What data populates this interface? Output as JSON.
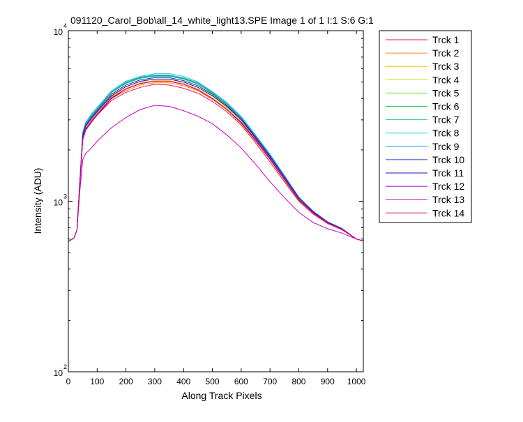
{
  "chart_data": {
    "type": "line",
    "title": "091120_Carol_Bob\\all_14_white_light13.SPE  Image 1 of 1  I:1  S:6  G:1",
    "xlabel": "Along Track Pixels",
    "ylabel": "Intensity (ADU)",
    "xlim": [
      0,
      1024
    ],
    "ylim": [
      100,
      10000
    ],
    "yscale": "log",
    "grid": false,
    "legend_position": "outside-right-top",
    "x_ticks": [
      {
        "value": 0,
        "label": "0"
      },
      {
        "value": 100,
        "label": "100"
      },
      {
        "value": 200,
        "label": "200"
      },
      {
        "value": 300,
        "label": "300"
      },
      {
        "value": 400,
        "label": "400"
      },
      {
        "value": 500,
        "label": "500"
      },
      {
        "value": 600,
        "label": "600"
      },
      {
        "value": 700,
        "label": "700"
      },
      {
        "value": 800,
        "label": "800"
      },
      {
        "value": 900,
        "label": "900"
      },
      {
        "value": 1000,
        "label": "1000"
      }
    ],
    "y_ticks": [
      {
        "value": 100,
        "base": "10",
        "exp": "2"
      },
      {
        "value": 1000,
        "base": "10",
        "exp": "3"
      },
      {
        "value": 10000,
        "base": "10",
        "exp": "4"
      }
    ],
    "x": [
      0,
      20,
      30,
      40,
      50,
      60,
      80,
      100,
      150,
      200,
      250,
      300,
      350,
      400,
      450,
      500,
      550,
      600,
      650,
      700,
      750,
      800,
      850,
      900,
      950,
      1000,
      1024
    ],
    "series": [
      {
        "name": "Trck 1",
        "color": "#e6194b",
        "values": [
          580,
          610,
          680,
          1300,
          2300,
          2600,
          2900,
          3200,
          3900,
          4350,
          4650,
          4850,
          4800,
          4600,
          4300,
          3850,
          3350,
          2800,
          2200,
          1700,
          1300,
          1000,
          840,
          740,
          680,
          600,
          585
        ]
      },
      {
        "name": "Trck 2",
        "color": "#f58231",
        "values": [
          580,
          610,
          680,
          1300,
          2350,
          2650,
          2950,
          3250,
          4000,
          4450,
          4800,
          4950,
          4950,
          4750,
          4450,
          3950,
          3450,
          2850,
          2250,
          1750,
          1330,
          1010,
          850,
          745,
          682,
          600,
          585
        ]
      },
      {
        "name": "Trck 3",
        "color": "#f5c400",
        "values": [
          580,
          610,
          680,
          1300,
          2400,
          2700,
          3000,
          3300,
          4100,
          4600,
          4950,
          5100,
          5100,
          4900,
          4550,
          4050,
          3500,
          2900,
          2300,
          1780,
          1350,
          1020,
          855,
          748,
          684,
          600,
          585
        ]
      },
      {
        "name": "Trck 4",
        "color": "#c8e000",
        "values": [
          580,
          610,
          680,
          1300,
          2450,
          2750,
          3050,
          3350,
          4200,
          4700,
          5050,
          5200,
          5200,
          5000,
          4650,
          4150,
          3550,
          2950,
          2330,
          1800,
          1370,
          1030,
          860,
          750,
          686,
          600,
          585
        ]
      },
      {
        "name": "Trck 5",
        "color": "#60e020",
        "values": [
          580,
          610,
          680,
          1300,
          2450,
          2800,
          3100,
          3400,
          4250,
          4800,
          5150,
          5300,
          5300,
          5100,
          4750,
          4200,
          3600,
          3000,
          2360,
          1820,
          1380,
          1040,
          865,
          752,
          688,
          600,
          585
        ]
      },
      {
        "name": "Trck 6",
        "color": "#20d060",
        "values": [
          580,
          610,
          680,
          1300,
          2500,
          2850,
          3150,
          3450,
          4350,
          4900,
          5250,
          5400,
          5400,
          5200,
          4850,
          4300,
          3700,
          3050,
          2400,
          1850,
          1400,
          1050,
          870,
          755,
          690,
          600,
          585
        ]
      },
      {
        "name": "Trck 7",
        "color": "#20c0a0",
        "values": [
          580,
          610,
          680,
          1300,
          2500,
          2900,
          3200,
          3500,
          4400,
          5000,
          5350,
          5500,
          5500,
          5300,
          4950,
          4350,
          3750,
          3100,
          2420,
          1870,
          1410,
          1055,
          873,
          757,
          692,
          600,
          585
        ]
      },
      {
        "name": "Trck 8",
        "color": "#20d0e0",
        "values": [
          580,
          610,
          680,
          1300,
          2550,
          2900,
          3250,
          3550,
          4450,
          5050,
          5400,
          5600,
          5600,
          5400,
          5000,
          4400,
          3800,
          3150,
          2450,
          1890,
          1420,
          1060,
          876,
          759,
          694,
          600,
          585
        ]
      },
      {
        "name": "Trck 9",
        "color": "#2090e0",
        "values": [
          580,
          610,
          680,
          1300,
          2500,
          2850,
          3150,
          3450,
          4350,
          4950,
          5300,
          5450,
          5450,
          5250,
          4900,
          4350,
          3750,
          3100,
          2420,
          1870,
          1410,
          1055,
          873,
          757,
          692,
          600,
          585
        ]
      },
      {
        "name": "Trck 10",
        "color": "#2040d0",
        "values": [
          580,
          610,
          680,
          1300,
          2450,
          2800,
          3100,
          3400,
          4250,
          4800,
          5150,
          5300,
          5300,
          5100,
          4750,
          4250,
          3650,
          3050,
          2380,
          1840,
          1390,
          1045,
          868,
          754,
          689,
          600,
          585
        ]
      },
      {
        "name": "Trck 11",
        "color": "#4000c0",
        "values": [
          580,
          610,
          680,
          1300,
          2400,
          2750,
          3050,
          3350,
          4150,
          4700,
          5050,
          5200,
          5200,
          5000,
          4650,
          4150,
          3600,
          3000,
          2350,
          1820,
          1380,
          1040,
          865,
          752,
          688,
          600,
          585
        ]
      },
      {
        "name": "Trck 12",
        "color": "#9000d0",
        "values": [
          580,
          610,
          680,
          1250,
          2300,
          2600,
          2900,
          3200,
          4000,
          4550,
          4900,
          5050,
          5050,
          4850,
          4500,
          4000,
          3450,
          2900,
          2300,
          1780,
          1350,
          1020,
          855,
          748,
          684,
          600,
          585
        ]
      },
      {
        "name": "Trck 13",
        "color": "#c800c8",
        "values": [
          580,
          610,
          680,
          1150,
          1750,
          1900,
          2050,
          2250,
          2700,
          3100,
          3450,
          3650,
          3600,
          3400,
          3150,
          2850,
          2450,
          2050,
          1650,
          1300,
          1050,
          860,
          750,
          690,
          650,
          600,
          585
        ]
      },
      {
        "name": "Trck 14",
        "color": "#e0006a",
        "values": [
          580,
          610,
          680,
          1280,
          2300,
          2650,
          2950,
          3250,
          4050,
          4550,
          4900,
          5050,
          5050,
          4850,
          4500,
          4000,
          3450,
          2880,
          2280,
          1760,
          1340,
          1015,
          852,
          746,
          683,
          600,
          585
        ]
      }
    ]
  }
}
